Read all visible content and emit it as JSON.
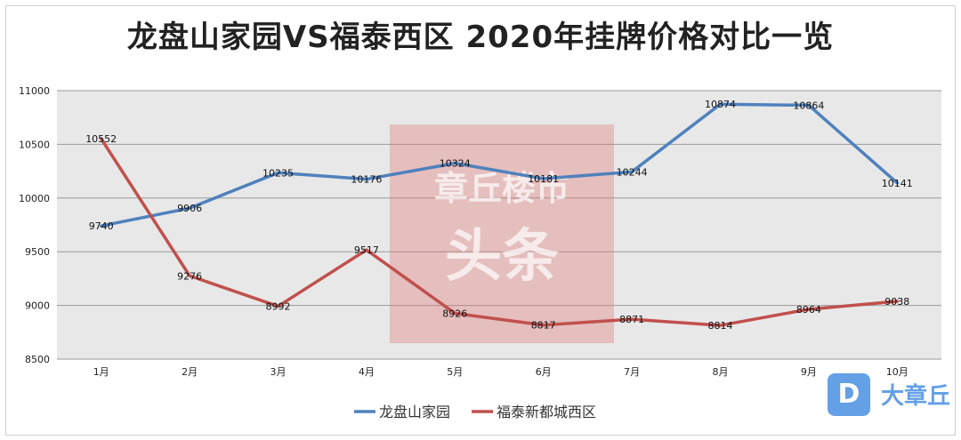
{
  "chart_data": {
    "type": "line",
    "title": "龙盘山家园VS福泰西区  2020年挂牌价格对比一览",
    "categories": [
      "1月",
      "2月",
      "3月",
      "4月",
      "5月",
      "6月",
      "7月",
      "8月",
      "9月",
      "10月"
    ],
    "ylim": [
      8500,
      11000
    ],
    "yticks": [
      8500,
      9000,
      9500,
      10000,
      10500,
      11000
    ],
    "grid": true,
    "legend": "bottom",
    "series": [
      {
        "name": "龙盘山家园",
        "color": "#4f81bd",
        "values": [
          9740,
          9906,
          10235,
          10176,
          10324,
          10181,
          10244,
          10874,
          10864,
          10141
        ]
      },
      {
        "name": "福泰新都城西区",
        "color": "#c0504d",
        "values": [
          10552,
          9276,
          8992,
          9517,
          8926,
          8817,
          8871,
          8814,
          8964,
          9038
        ]
      }
    ]
  },
  "watermark": {
    "center_line1": "章丘楼市",
    "center_line2": "头条",
    "logo_letter": "D",
    "logo_text": "大章丘"
  }
}
